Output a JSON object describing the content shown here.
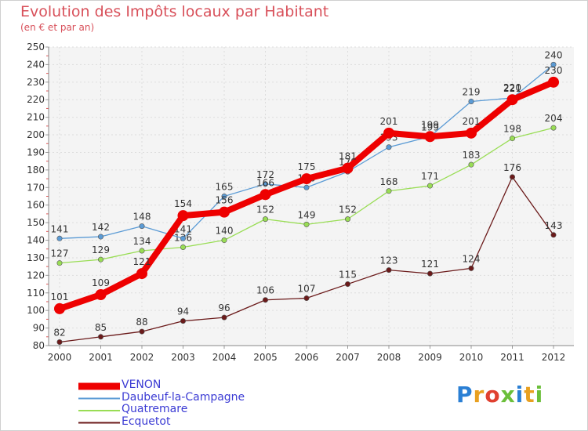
{
  "header": {
    "title": "Evolution des Impôts locaux par Habitant",
    "subtitle": "(en € et par an)"
  },
  "logo": {
    "text": "Proxiti"
  },
  "chart_data": {
    "type": "line",
    "title": "Evolution des Impôts locaux par Habitant",
    "subtitle": "(en € et par an)",
    "xlabel": "",
    "ylabel": "",
    "x": [
      "2000",
      "2001",
      "2002",
      "2003",
      "2004",
      "2005",
      "2006",
      "2007",
      "2008",
      "2009",
      "2010",
      "2011",
      "2012"
    ],
    "ylim": [
      80,
      250
    ],
    "yticks": [
      80,
      90,
      100,
      110,
      120,
      130,
      140,
      150,
      160,
      170,
      180,
      190,
      200,
      210,
      220,
      230,
      240,
      250
    ],
    "grid": true,
    "legend_position": "bottom-left",
    "series": [
      {
        "name": "VENON",
        "color": "#ee0000",
        "values": [
          101,
          109,
          121,
          154,
          156,
          166,
          175,
          181,
          201,
          199,
          201,
          220,
          230
        ]
      },
      {
        "name": "Daubeuf-la-Campagne",
        "color": "#5b9bd5",
        "values": [
          141,
          142,
          148,
          141,
          165,
          172,
          170,
          179,
          193,
          199,
          219,
          221,
          240
        ]
      },
      {
        "name": "Quatremare",
        "color": "#99dd55",
        "values": [
          127,
          129,
          134,
          136,
          140,
          152,
          149,
          152,
          168,
          171,
          183,
          198,
          204
        ]
      },
      {
        "name": "Ecquetot",
        "color": "#6b1a1a",
        "values": [
          82,
          85,
          88,
          94,
          96,
          106,
          107,
          115,
          123,
          121,
          124,
          176,
          143
        ]
      }
    ]
  }
}
